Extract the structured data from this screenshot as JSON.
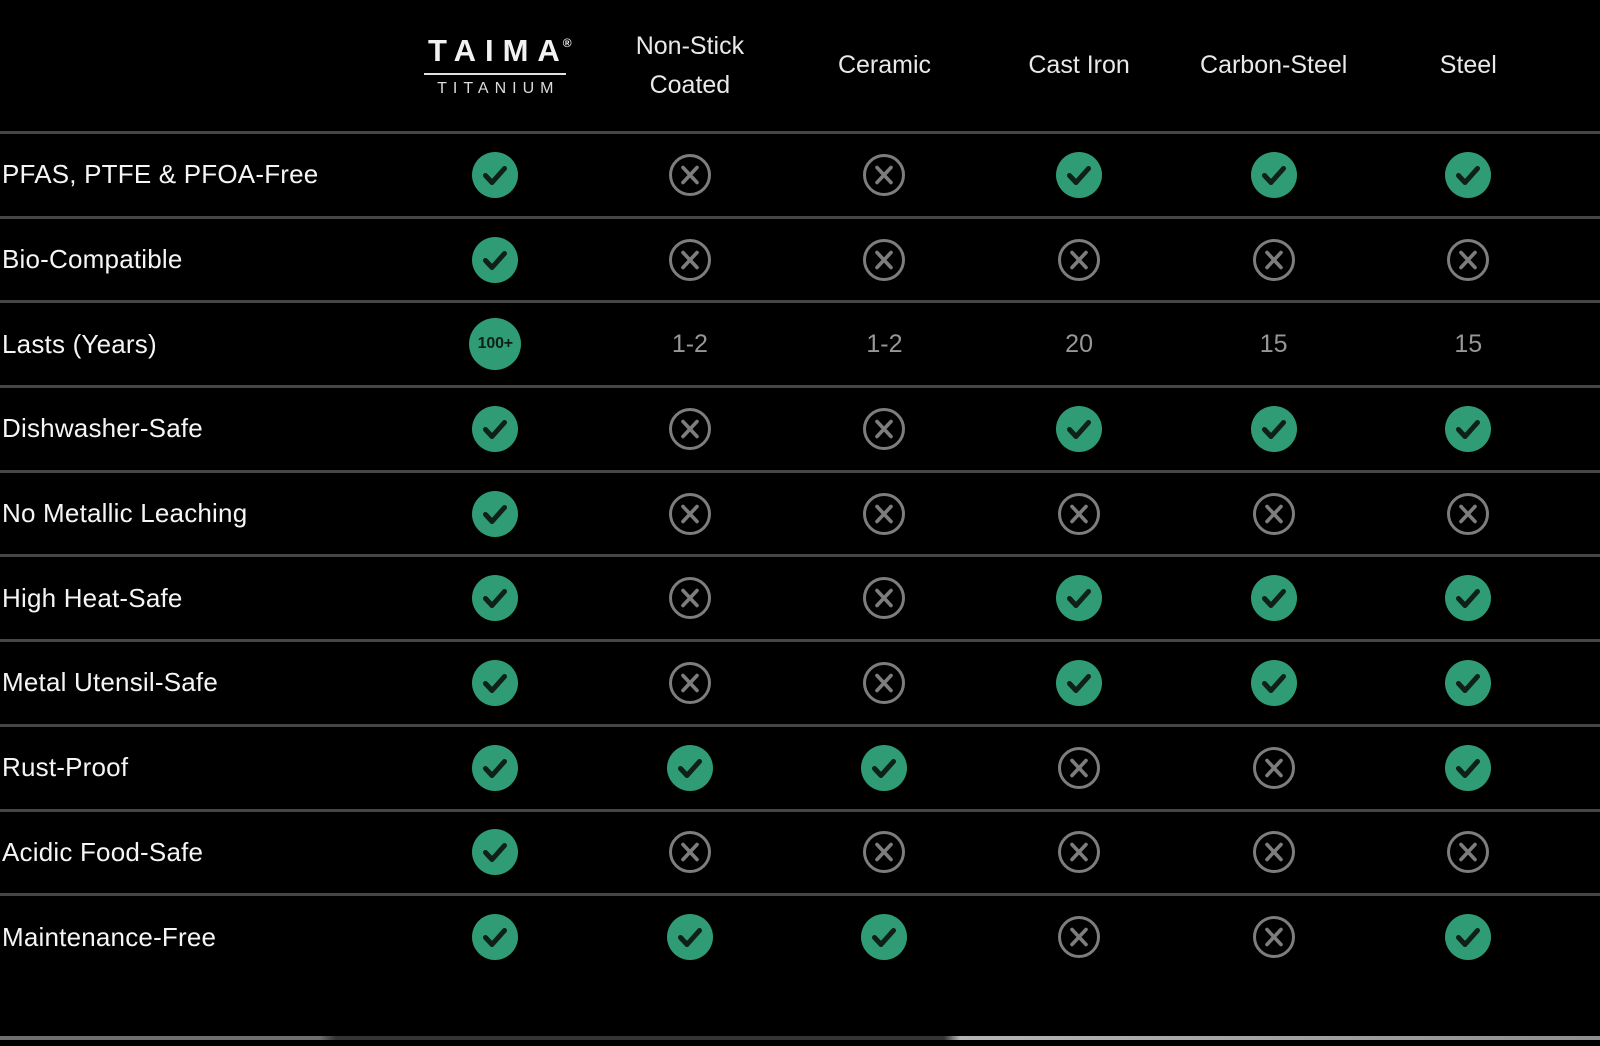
{
  "brand": {
    "name": "TAIMA",
    "registered_mark": "®",
    "subtitle": "TITANIUM"
  },
  "columns": [
    "Non-Stick Coated",
    "Ceramic",
    "Cast Iron",
    "Carbon-Steel",
    "Steel"
  ],
  "rows": [
    {
      "label": "PFAS, PTFE & PFOA-Free",
      "cells": [
        {
          "type": "check"
        },
        {
          "type": "cross"
        },
        {
          "type": "cross"
        },
        {
          "type": "check"
        },
        {
          "type": "check"
        },
        {
          "type": "check"
        }
      ]
    },
    {
      "label": "Bio-Compatible",
      "cells": [
        {
          "type": "check"
        },
        {
          "type": "cross"
        },
        {
          "type": "cross"
        },
        {
          "type": "cross"
        },
        {
          "type": "cross"
        },
        {
          "type": "cross"
        }
      ]
    },
    {
      "label": "Lasts (Years)",
      "cells": [
        {
          "type": "badge",
          "text": "100+"
        },
        {
          "type": "text",
          "text": "1-2"
        },
        {
          "type": "text",
          "text": "1-2"
        },
        {
          "type": "text",
          "text": "20"
        },
        {
          "type": "text",
          "text": "15"
        },
        {
          "type": "text",
          "text": "15"
        }
      ]
    },
    {
      "label": "Dishwasher-Safe",
      "cells": [
        {
          "type": "check"
        },
        {
          "type": "cross"
        },
        {
          "type": "cross"
        },
        {
          "type": "check"
        },
        {
          "type": "check"
        },
        {
          "type": "check"
        }
      ]
    },
    {
      "label": "No Metallic Leaching",
      "cells": [
        {
          "type": "check"
        },
        {
          "type": "cross"
        },
        {
          "type": "cross"
        },
        {
          "type": "cross"
        },
        {
          "type": "cross"
        },
        {
          "type": "cross"
        }
      ]
    },
    {
      "label": "High Heat-Safe",
      "cells": [
        {
          "type": "check"
        },
        {
          "type": "cross"
        },
        {
          "type": "cross"
        },
        {
          "type": "check"
        },
        {
          "type": "check"
        },
        {
          "type": "check"
        }
      ]
    },
    {
      "label": "Metal Utensil-Safe",
      "cells": [
        {
          "type": "check"
        },
        {
          "type": "cross"
        },
        {
          "type": "cross"
        },
        {
          "type": "check"
        },
        {
          "type": "check"
        },
        {
          "type": "check"
        }
      ]
    },
    {
      "label": "Rust-Proof",
      "cells": [
        {
          "type": "check"
        },
        {
          "type": "check"
        },
        {
          "type": "check"
        },
        {
          "type": "cross"
        },
        {
          "type": "cross"
        },
        {
          "type": "check"
        }
      ]
    },
    {
      "label": "Acidic Food-Safe",
      "cells": [
        {
          "type": "check"
        },
        {
          "type": "cross"
        },
        {
          "type": "cross"
        },
        {
          "type": "cross"
        },
        {
          "type": "cross"
        },
        {
          "type": "cross"
        }
      ]
    },
    {
      "label": "Maintenance-Free",
      "cells": [
        {
          "type": "check"
        },
        {
          "type": "check"
        },
        {
          "type": "check"
        },
        {
          "type": "cross"
        },
        {
          "type": "cross"
        },
        {
          "type": "check"
        }
      ]
    }
  ],
  "colors": {
    "background": "#000000",
    "accent_green": "#309C75",
    "check_stroke": "#0E2019",
    "cross_gray": "#7D7D7D",
    "separator": "#464646",
    "label_text": "#F5F5F5",
    "header_text": "#E9E9E9",
    "value_text": "#979797",
    "badge_text": "#0D211A"
  },
  "chart_data": {
    "type": "table",
    "title": "TAIMA Titanium cookware comparison",
    "columns": [
      "TAIMA Titanium",
      "Non-Stick Coated",
      "Ceramic",
      "Cast Iron",
      "Carbon-Steel",
      "Steel"
    ],
    "rows": [
      {
        "label": "PFAS, PTFE & PFOA-Free",
        "values": [
          "yes",
          "no",
          "no",
          "yes",
          "yes",
          "yes"
        ]
      },
      {
        "label": "Bio-Compatible",
        "values": [
          "yes",
          "no",
          "no",
          "no",
          "no",
          "no"
        ]
      },
      {
        "label": "Lasts (Years)",
        "values": [
          "100+",
          "1-2",
          "1-2",
          "20",
          "15",
          "15"
        ]
      },
      {
        "label": "Dishwasher-Safe",
        "values": [
          "yes",
          "no",
          "no",
          "yes",
          "yes",
          "yes"
        ]
      },
      {
        "label": "No Metallic Leaching",
        "values": [
          "yes",
          "no",
          "no",
          "no",
          "no",
          "no"
        ]
      },
      {
        "label": "High Heat-Safe",
        "values": [
          "yes",
          "no",
          "no",
          "yes",
          "yes",
          "yes"
        ]
      },
      {
        "label": "Metal Utensil-Safe",
        "values": [
          "yes",
          "no",
          "no",
          "yes",
          "yes",
          "yes"
        ]
      },
      {
        "label": "Rust-Proof",
        "values": [
          "yes",
          "yes",
          "yes",
          "no",
          "no",
          "yes"
        ]
      },
      {
        "label": "Acidic Food-Safe",
        "values": [
          "yes",
          "no",
          "no",
          "no",
          "no",
          "no"
        ]
      },
      {
        "label": "Maintenance-Free",
        "values": [
          "yes",
          "yes",
          "yes",
          "no",
          "no",
          "yes"
        ]
      }
    ]
  }
}
